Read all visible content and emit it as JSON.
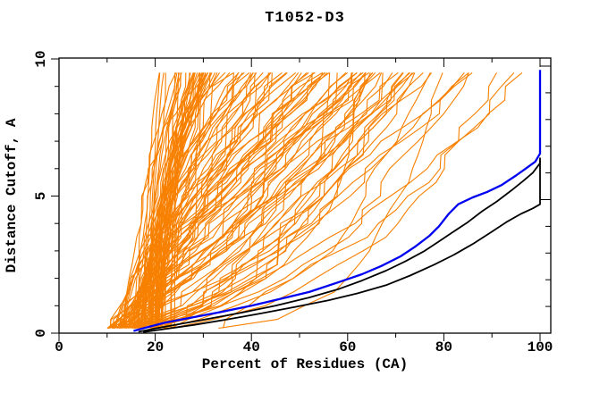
{
  "figure": {
    "background": "#ffffff",
    "title": "T1052-D3"
  },
  "chart_data": {
    "type": "line",
    "title": "T1052-D3",
    "xlabel": "Percent of Residues (CA)",
    "ylabel": "Distance Cutoff, A",
    "xlim": [
      0,
      100
    ],
    "ylim": [
      0,
      10
    ],
    "x_ticks_major": [
      0,
      20,
      40,
      60,
      80,
      100
    ],
    "x_tick_labels": [
      "0",
      "20",
      "40",
      "60",
      "80",
      "100"
    ],
    "x_minor_step": 10,
    "y_ticks_major": [
      0,
      5,
      10
    ],
    "y_tick_labels": [
      "0",
      "5",
      "10"
    ],
    "y_minor_step": 1,
    "grid": false,
    "legend": "none",
    "colors": {
      "ensemble": "#F88000",
      "highlight_blue": "#0000F0",
      "highlight_black": "#000000",
      "frame": "#000000",
      "text": "#000000",
      "background": "#ffffff"
    },
    "series": [
      {
        "name": "highlight-blue-model",
        "color": "#0000F0",
        "width": 2.3,
        "points": [
          [
            15.5,
            0.08
          ],
          [
            18,
            0.2
          ],
          [
            22,
            0.38
          ],
          [
            27,
            0.55
          ],
          [
            33,
            0.75
          ],
          [
            40,
            1.0
          ],
          [
            46,
            1.25
          ],
          [
            52,
            1.5
          ],
          [
            58,
            1.85
          ],
          [
            63,
            2.15
          ],
          [
            67,
            2.45
          ],
          [
            71,
            2.8
          ],
          [
            74,
            3.15
          ],
          [
            77,
            3.55
          ],
          [
            79,
            3.9
          ],
          [
            81,
            4.35
          ],
          [
            83,
            4.7
          ],
          [
            86,
            4.95
          ],
          [
            89,
            5.15
          ],
          [
            92,
            5.4
          ],
          [
            95,
            5.75
          ],
          [
            97,
            6.0
          ],
          [
            99,
            6.25
          ],
          [
            100,
            6.55
          ],
          [
            100,
            9.6
          ]
        ]
      },
      {
        "name": "highlight-black-upper",
        "color": "#000000",
        "width": 1.8,
        "points": [
          [
            16.5,
            0.05
          ],
          [
            20,
            0.17
          ],
          [
            25,
            0.33
          ],
          [
            31,
            0.52
          ],
          [
            38,
            0.75
          ],
          [
            45,
            1.0
          ],
          [
            52,
            1.3
          ],
          [
            58,
            1.6
          ],
          [
            63,
            1.92
          ],
          [
            68,
            2.28
          ],
          [
            72,
            2.62
          ],
          [
            76,
            3.0
          ],
          [
            79,
            3.35
          ],
          [
            82,
            3.7
          ],
          [
            85,
            4.05
          ],
          [
            88,
            4.45
          ],
          [
            91,
            4.8
          ],
          [
            94,
            5.2
          ],
          [
            96.5,
            5.55
          ],
          [
            98.5,
            5.85
          ],
          [
            100,
            6.2
          ],
          [
            100,
            6.4
          ]
        ]
      },
      {
        "name": "highlight-black-lower",
        "color": "#000000",
        "width": 1.8,
        "points": [
          [
            17.5,
            0.04
          ],
          [
            22,
            0.15
          ],
          [
            28,
            0.3
          ],
          [
            35,
            0.5
          ],
          [
            42,
            0.72
          ],
          [
            49,
            0.95
          ],
          [
            56,
            1.2
          ],
          [
            62,
            1.45
          ],
          [
            68,
            1.75
          ],
          [
            73,
            2.1
          ],
          [
            78,
            2.5
          ],
          [
            82,
            2.85
          ],
          [
            86,
            3.25
          ],
          [
            90,
            3.7
          ],
          [
            93,
            4.05
          ],
          [
            96,
            4.35
          ],
          [
            98.5,
            4.55
          ],
          [
            100,
            4.7
          ],
          [
            100,
            6.3
          ]
        ]
      }
    ],
    "ensemble": {
      "name": "all-model-gdt-curves",
      "color": "#F88000",
      "count": 120,
      "seed": 20,
      "width": 1.1,
      "y_start": 0.18,
      "y_cutoff_min": 0.5,
      "y_cutoff_max": 9.5,
      "y_cutoff_step": 0.5
    }
  }
}
